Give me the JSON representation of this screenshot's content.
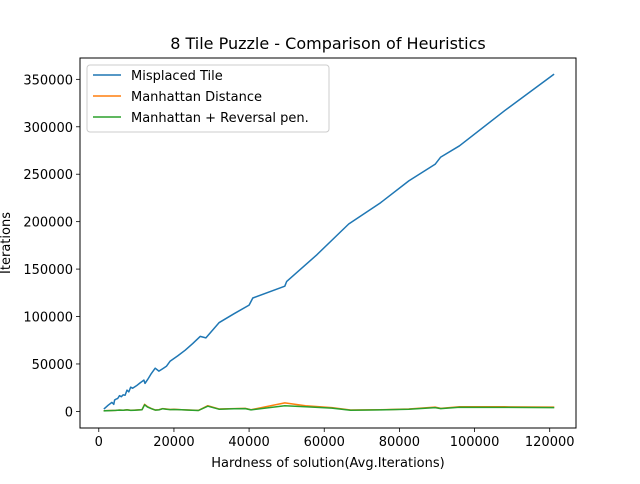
{
  "chart_data": {
    "type": "line",
    "title": "8 Tile Puzzle - Comparison of Heuristics",
    "xlabel": "Hardness of solution(Avg.Iterations)",
    "ylabel": "Iterations",
    "xlim": [
      -5000,
      127000
    ],
    "ylim": [
      -17500,
      372500
    ],
    "xticks": [
      0,
      20000,
      40000,
      60000,
      80000,
      100000,
      120000
    ],
    "xtick_labels": [
      "0",
      "20000",
      "40000",
      "60000",
      "80000",
      "100000",
      "120000"
    ],
    "yticks": [
      0,
      50000,
      100000,
      150000,
      200000,
      250000,
      300000,
      350000
    ],
    "ytick_labels": [
      "0",
      "50000",
      "100000",
      "150000",
      "200000",
      "250000",
      "300000",
      "350000"
    ],
    "grid": false,
    "legend_position": "top-left",
    "series": [
      {
        "name": "Misplaced Tile",
        "color": "#1f77b4",
        "x": [
          1500,
          2500,
          3500,
          4000,
          4200,
          4600,
          5000,
          5500,
          6000,
          6500,
          7000,
          7500,
          8000,
          8500,
          9000,
          10000,
          11000,
          12000,
          12300,
          13000,
          14000,
          15000,
          16000,
          17000,
          18000,
          19000,
          21000,
          23000,
          25000,
          27000,
          28500,
          32000,
          36000,
          40000,
          41000,
          49500,
          50000,
          58000,
          66500,
          75000,
          82500,
          89500,
          91000,
          96000,
          108000,
          121000
        ],
        "y": [
          3000,
          6500,
          9500,
          7500,
          12000,
          13000,
          13500,
          16500,
          15500,
          17500,
          17000,
          22500,
          20500,
          25500,
          24500,
          27000,
          30000,
          33000,
          29500,
          33500,
          40000,
          45500,
          42500,
          45000,
          47500,
          53000,
          58500,
          64500,
          71500,
          79000,
          77500,
          93500,
          103000,
          112000,
          119500,
          132000,
          137000,
          165000,
          197500,
          220000,
          243000,
          260500,
          268000,
          280000,
          317000,
          355000
        ]
      },
      {
        "name": "Manhattan Distance",
        "color": "#ff7f0e",
        "x": [
          1500,
          3000,
          4500,
          5500,
          6500,
          7500,
          8500,
          9500,
          10500,
          11500,
          12200,
          13000,
          14000,
          15000,
          16000,
          17000,
          18000,
          19000,
          20000,
          22000,
          24000,
          26500,
          29000,
          32000,
          36000,
          39000,
          40500,
          49500,
          55000,
          62000,
          67000,
          75000,
          82500,
          89500,
          91000,
          96000,
          108000,
          121000
        ],
        "y": [
          700,
          900,
          1100,
          1500,
          1300,
          1700,
          1200,
          1400,
          1600,
          1800,
          7500,
          5000,
          3000,
          1500,
          1800,
          3000,
          2500,
          2000,
          2200,
          1800,
          1500,
          1000,
          6000,
          2500,
          3000,
          3200,
          1800,
          9000,
          6000,
          4000,
          1500,
          1800,
          2500,
          4500,
          3200,
          5000,
          4800,
          4500
        ]
      },
      {
        "name": "Manhattan + Reversal pen.",
        "color": "#2ca02c",
        "x": [
          1500,
          3000,
          4500,
          5500,
          6500,
          7500,
          8500,
          9500,
          10500,
          11500,
          12200,
          13000,
          14000,
          15000,
          16000,
          17000,
          18000,
          19000,
          20000,
          22000,
          24000,
          26500,
          29000,
          32000,
          36000,
          39000,
          40500,
          49500,
          55000,
          62000,
          67000,
          75000,
          82500,
          89500,
          91000,
          96000,
          108000,
          121000
        ],
        "y": [
          600,
          800,
          1000,
          1400,
          1200,
          1600,
          1100,
          1300,
          1500,
          1700,
          7000,
          4500,
          2800,
          1400,
          1600,
          2800,
          2300,
          1900,
          2000,
          1700,
          1400,
          900,
          5500,
          2300,
          2800,
          3000,
          1600,
          6000,
          5000,
          3500,
          1200,
          1600,
          2200,
          4000,
          3000,
          4300,
          4200,
          4000
        ]
      }
    ]
  }
}
